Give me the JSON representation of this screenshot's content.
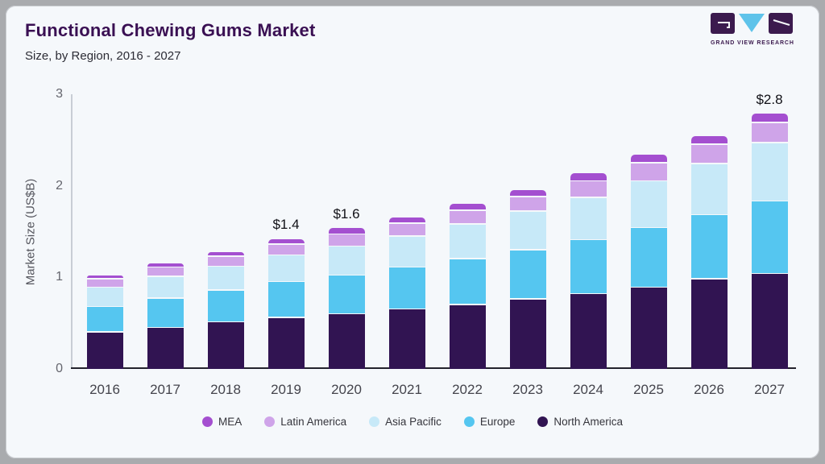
{
  "page": {
    "background": "#a9abae",
    "card_background": "#f5f8fb"
  },
  "header": {
    "title": "Functional Chewing Gums Market",
    "subtitle": "Size, by Region, 2016 - 2027"
  },
  "logo": {
    "text": "GRAND VIEW RESEARCH",
    "block_color": "#3b1a4e",
    "v_color": "#5ec3ea"
  },
  "chart_data": {
    "type": "bar",
    "stacked": true,
    "title": "Functional Chewing Gums Market",
    "subtitle": "Size, by Region, 2016 - 2027",
    "xlabel": "",
    "ylabel": "Market Size (US$B)",
    "ylim": [
      0,
      3
    ],
    "yticks": [
      0,
      1,
      2,
      3
    ],
    "grid": false,
    "legend_position": "bottom",
    "categories": [
      "2016",
      "2017",
      "2018",
      "2019",
      "2020",
      "2021",
      "2022",
      "2023",
      "2024",
      "2025",
      "2026",
      "2027"
    ],
    "series": [
      {
        "name": "North America",
        "color": "#311452",
        "values": [
          0.41,
          0.46,
          0.52,
          0.57,
          0.61,
          0.66,
          0.71,
          0.77,
          0.83,
          0.9,
          0.99,
          1.05
        ]
      },
      {
        "name": "Europe",
        "color": "#55c6f0",
        "values": [
          0.28,
          0.32,
          0.35,
          0.39,
          0.42,
          0.46,
          0.5,
          0.54,
          0.59,
          0.65,
          0.7,
          0.79
        ]
      },
      {
        "name": "Asia Pacific",
        "color": "#c7e9f8",
        "values": [
          0.21,
          0.24,
          0.26,
          0.29,
          0.32,
          0.34,
          0.38,
          0.42,
          0.46,
          0.51,
          0.56,
          0.64
        ]
      },
      {
        "name": "Latin America",
        "color": "#cfa4e9",
        "values": [
          0.09,
          0.1,
          0.11,
          0.12,
          0.13,
          0.14,
          0.15,
          0.16,
          0.18,
          0.2,
          0.21,
          0.22
        ]
      },
      {
        "name": "MEA",
        "color": "#a44fd0",
        "values": [
          0.04,
          0.05,
          0.05,
          0.06,
          0.07,
          0.07,
          0.08,
          0.08,
          0.09,
          0.09,
          0.1,
          0.1
        ]
      }
    ],
    "annotations": [
      {
        "category": "2019",
        "label": "$1.4"
      },
      {
        "category": "2020",
        "label": "$1.6"
      },
      {
        "category": "2027",
        "label": "$2.8"
      }
    ],
    "legend_order": [
      "MEA",
      "Latin America",
      "Asia Pacific",
      "Europe",
      "North America"
    ]
  }
}
